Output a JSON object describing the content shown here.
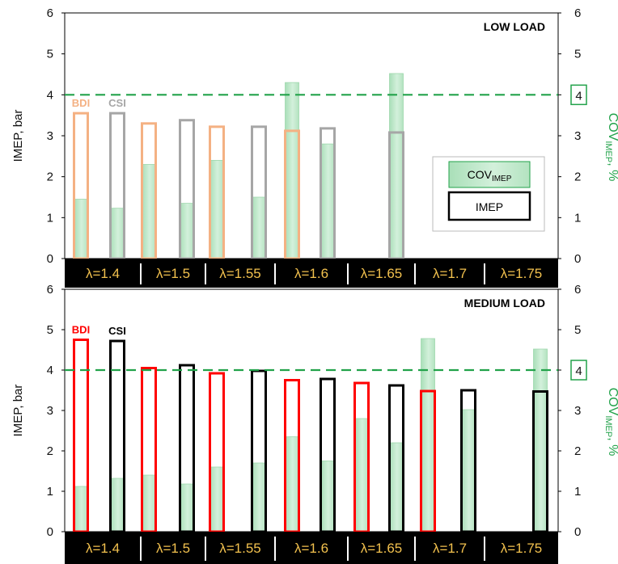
{
  "chart_data": [
    {
      "type": "bar",
      "title": "LOW LOAD",
      "ylabel": "IMEP, bar",
      "y2label_main": "COV",
      "y2label_sub": "IMEP",
      "y2label_unit": ", %",
      "ylim": [
        0,
        6
      ],
      "y2lim": [
        0,
        6
      ],
      "yticks": [
        "0",
        "1",
        "2",
        "3",
        "4",
        "5",
        "6"
      ],
      "categories": [
        "λ=1.4",
        "λ=1.5",
        "λ=1.55",
        "λ=1.6",
        "λ=1.65",
        "λ=1.7",
        "λ=1.75"
      ],
      "threshold": 4,
      "threshold_label": "4",
      "series": [
        {
          "name": "BDI",
          "color": "#f4b183",
          "imep": [
            3.55,
            3.3,
            3.22,
            3.12,
            null,
            null,
            null
          ],
          "cov": [
            1.45,
            2.3,
            2.4,
            4.3,
            null,
            null,
            null
          ]
        },
        {
          "name": "CSI",
          "color": "#a6a6a6",
          "imep": [
            3.55,
            3.38,
            3.22,
            3.18,
            3.08,
            null,
            null
          ],
          "cov": [
            1.23,
            1.35,
            1.5,
            2.8,
            4.52,
            null,
            null
          ]
        }
      ],
      "legend": {
        "cov_main": "COV",
        "cov_sub": "IMEP",
        "imep": "IMEP"
      }
    },
    {
      "type": "bar",
      "title": "MEDIUM LOAD",
      "ylabel": "IMEP, bar",
      "y2label_main": "COV",
      "y2label_sub": "IMEP",
      "y2label_unit": ", %",
      "ylim": [
        0,
        6
      ],
      "y2lim": [
        0,
        6
      ],
      "yticks": [
        "0",
        "1",
        "2",
        "3",
        "4",
        "5",
        "6"
      ],
      "categories": [
        "λ=1.4",
        "λ=1.5",
        "λ=1.55",
        "λ=1.6",
        "λ=1.65",
        "λ=1.7",
        "λ=1.75"
      ],
      "threshold": 4,
      "threshold_label": "4",
      "series": [
        {
          "name": "BDI",
          "color": "#ff0000",
          "imep": [
            4.75,
            4.05,
            3.92,
            3.75,
            3.68,
            3.48,
            null
          ],
          "cov": [
            1.12,
            1.4,
            1.6,
            2.35,
            2.8,
            4.78,
            null
          ]
        },
        {
          "name": "CSI",
          "color": "#000000",
          "imep": [
            4.72,
            4.12,
            3.98,
            3.78,
            3.62,
            3.5,
            3.47
          ],
          "cov": [
            1.32,
            1.18,
            1.7,
            1.75,
            2.2,
            3.02,
            4.52
          ]
        }
      ]
    }
  ]
}
